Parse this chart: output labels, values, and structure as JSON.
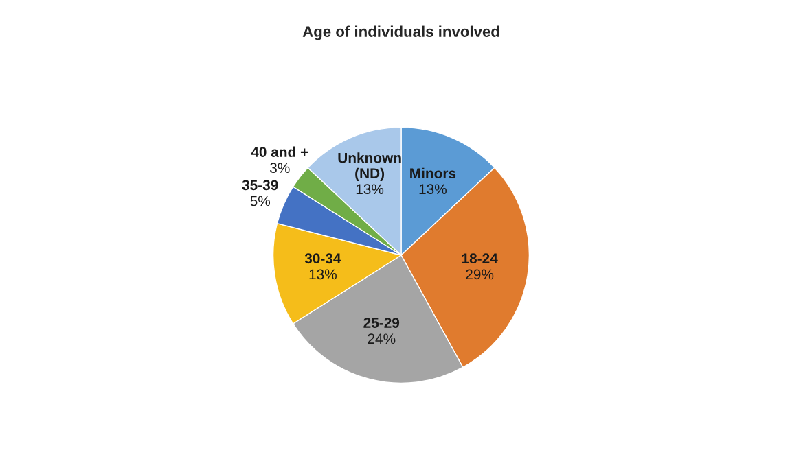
{
  "chart_data": {
    "type": "pie",
    "title": "Age of individuals involved",
    "categories": [
      "Minors",
      "18-24",
      "25-29",
      "30-34",
      "35-39",
      "40 and +",
      "Unknown (ND)"
    ],
    "values": [
      13,
      29,
      24,
      13,
      5,
      3,
      13
    ],
    "value_labels": [
      "13%",
      "29%",
      "24%",
      "13%",
      "5%",
      "3%",
      "13%"
    ],
    "colors": [
      "#5b9bd5",
      "#e07b2e",
      "#a5a5a5",
      "#f5bd1a",
      "#4472c4",
      "#70ad47",
      "#a9c8ea"
    ]
  }
}
